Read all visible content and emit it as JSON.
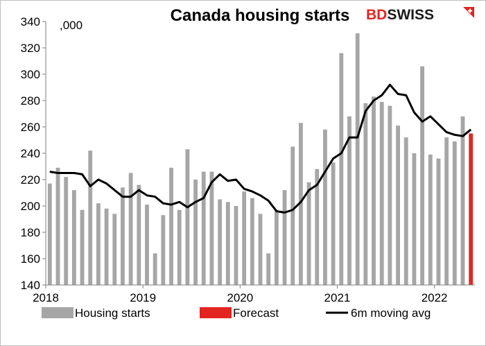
{
  "chart_data": {
    "type": "bar",
    "title": "Canada housing starts",
    "unit_label": ",000",
    "brand": {
      "part1": "BD",
      "part2": "SWISS",
      "color1": "#e32521",
      "color2": "#1a1a1a"
    },
    "xlabel": "",
    "ylabel": "",
    "ylim": [
      140,
      340
    ],
    "y_ticks": [
      "140",
      "160",
      "180",
      "200",
      "220",
      "240",
      "260",
      "280",
      "300",
      "320",
      "340"
    ],
    "x_tick_labels": [
      "2018",
      "2019",
      "2020",
      "2021",
      "2022"
    ],
    "grid": false,
    "legend_position": "bottom",
    "colors": {
      "bars": "#a6a6a6",
      "forecast": "#e32521",
      "line": "#000000",
      "axis": "#7f7f7f"
    },
    "x": [
      "2018-01",
      "2018-02",
      "2018-03",
      "2018-04",
      "2018-05",
      "2018-06",
      "2018-07",
      "2018-08",
      "2018-09",
      "2018-10",
      "2018-11",
      "2018-12",
      "2019-01",
      "2019-02",
      "2019-03",
      "2019-04",
      "2019-05",
      "2019-06",
      "2019-07",
      "2019-08",
      "2019-09",
      "2019-10",
      "2019-11",
      "2019-12",
      "2020-01",
      "2020-02",
      "2020-03",
      "2020-04",
      "2020-05",
      "2020-06",
      "2020-07",
      "2020-08",
      "2020-09",
      "2020-10",
      "2020-11",
      "2020-12",
      "2021-01",
      "2021-02",
      "2021-03",
      "2021-04",
      "2021-05",
      "2021-06",
      "2021-07",
      "2021-08",
      "2021-09",
      "2021-10",
      "2021-11",
      "2021-12",
      "2022-01",
      "2022-02",
      "2022-03",
      "2022-04",
      "2022-05"
    ],
    "series": [
      {
        "name": "Housing starts",
        "kind": "bar",
        "values": [
          217,
          229,
          222,
          212,
          197,
          242,
          202,
          198,
          194,
          214,
          225,
          216,
          201,
          164,
          193,
          229,
          197,
          243,
          220,
          226,
          226,
          205,
          203,
          200,
          211,
          206,
          194,
          164,
          197,
          212,
          245,
          263,
          218,
          228,
          258,
          233,
          316,
          268,
          331,
          278,
          283,
          279,
          276,
          261,
          252,
          240,
          306,
          239,
          236,
          252,
          249,
          268,
          null
        ]
      },
      {
        "name": "Forecast",
        "kind": "bar",
        "values": [
          null,
          null,
          null,
          null,
          null,
          null,
          null,
          null,
          null,
          null,
          null,
          null,
          null,
          null,
          null,
          null,
          null,
          null,
          null,
          null,
          null,
          null,
          null,
          null,
          null,
          null,
          null,
          null,
          null,
          null,
          null,
          null,
          null,
          null,
          null,
          null,
          null,
          null,
          null,
          null,
          null,
          null,
          null,
          null,
          null,
          null,
          null,
          null,
          null,
          null,
          null,
          null,
          255
        ]
      },
      {
        "name": "6m moving avg",
        "kind": "line",
        "values": [
          226,
          225,
          225,
          225,
          224,
          215,
          220,
          217,
          212,
          207,
          207,
          212,
          208,
          207,
          202,
          201,
          203,
          199,
          203,
          206,
          218,
          224,
          219,
          220,
          213,
          211,
          208,
          204,
          196,
          195,
          197,
          203,
          212,
          216,
          226,
          236,
          240,
          252,
          252,
          272,
          280,
          284,
          292,
          285,
          284,
          271,
          264,
          268,
          262,
          256,
          254,
          253,
          258
        ]
      }
    ]
  }
}
